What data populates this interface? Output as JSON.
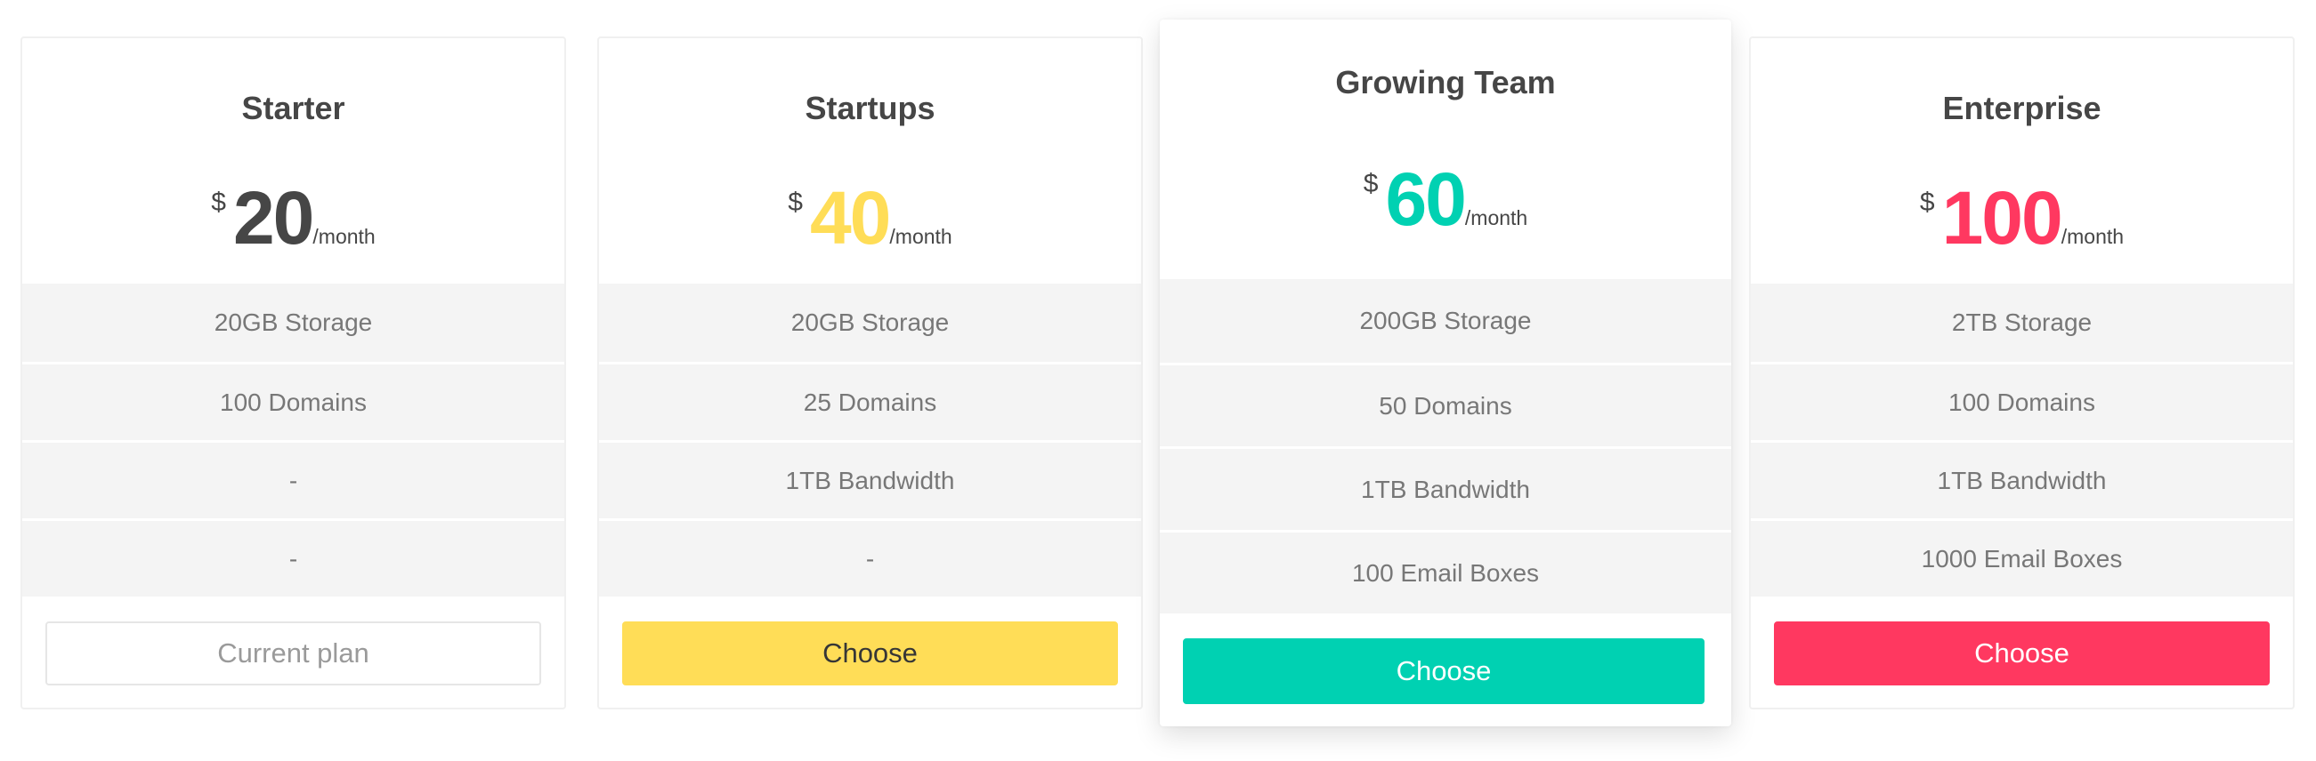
{
  "plans": [
    {
      "name": "Starter",
      "currency": "$",
      "price": "20",
      "period": "/month",
      "price_color": "#464646",
      "features": [
        "20GB Storage",
        "100 Domains",
        "-",
        "-"
      ],
      "button": {
        "label": "Current plan",
        "bg": "#ffffff",
        "color": "#9a9a9a",
        "border": "#e6e6e6"
      }
    },
    {
      "name": "Startups",
      "currency": "$",
      "price": "40",
      "period": "/month",
      "price_color": "#ffdd57",
      "features": [
        "20GB Storage",
        "25 Domains",
        "1TB Bandwidth",
        "-"
      ],
      "button": {
        "label": "Choose",
        "bg": "#ffdd57",
        "color": "#363636",
        "border": "#ffdd57"
      }
    },
    {
      "name": "Growing Team",
      "currency": "$",
      "price": "60",
      "period": "/month",
      "price_color": "#00d1b2",
      "features": [
        "200GB Storage",
        "50 Domains",
        "1TB Bandwidth",
        "100 Email Boxes"
      ],
      "button": {
        "label": "Choose",
        "bg": "#00d1b2",
        "color": "#ffffff",
        "border": "#00d1b2"
      }
    },
    {
      "name": "Enterprise",
      "currency": "$",
      "price": "100",
      "period": "/month",
      "price_color": "#ff3860",
      "features": [
        "2TB Storage",
        "100 Domains",
        "1TB Bandwidth",
        "1000 Email Boxes"
      ],
      "button": {
        "label": "Choose",
        "bg": "#ff3860",
        "color": "#ffffff",
        "border": "#ff3860"
      }
    }
  ]
}
